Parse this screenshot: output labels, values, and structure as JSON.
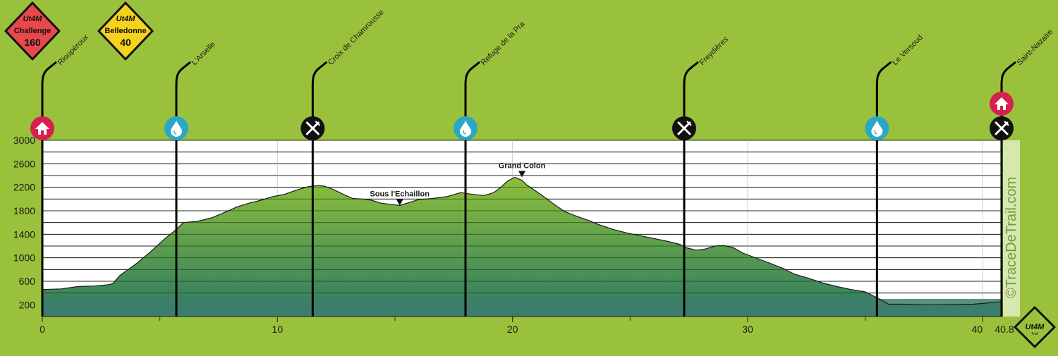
{
  "badges": [
    {
      "brand": "Ut4M",
      "line1": "Challenge",
      "line2": "160",
      "color": "#e8474c"
    },
    {
      "brand": "Ut4M",
      "line1": "Belledonne",
      "line2": "40",
      "color": "#f5d21c"
    }
  ],
  "corner_logo": {
    "brand": "Ut4M",
    "line2": "Trail"
  },
  "watermark": "©TraceDeTrail.com",
  "chart_data": {
    "type": "area",
    "title": "",
    "xlabel": "",
    "ylabel": "",
    "xlim": [
      0,
      40.8
    ],
    "ylim": [
      0,
      3000
    ],
    "x_ticks": [
      0,
      10,
      20,
      30,
      40
    ],
    "x_end_label": "40.8",
    "y_ticks": [
      200,
      600,
      1000,
      1400,
      1800,
      2200,
      2600,
      3000
    ],
    "grid": true,
    "colors": {
      "fill_top": "#8dbf3a",
      "fill_bottom": "#2b7a64",
      "band": "#3e7e6e",
      "line": "#1a1a1a"
    },
    "profile": {
      "x": [
        0,
        0.8,
        1.5,
        2.2,
        2.8,
        3.0,
        3.3,
        4.0,
        4.6,
        5.2,
        5.6,
        5.8,
        6.0,
        6.6,
        7.2,
        7.8,
        8.3,
        8.8,
        9.3,
        9.8,
        10.3,
        10.8,
        11.3,
        11.7,
        12.0,
        12.4,
        12.8,
        13.2,
        13.6,
        14.0,
        14.4,
        14.8,
        15.2,
        15.6,
        16.0,
        16.6,
        17.2,
        17.8,
        18.3,
        18.8,
        19.2,
        19.5,
        19.8,
        20.1,
        20.4,
        20.6,
        20.9,
        21.3,
        21.7,
        22.2,
        22.7,
        23.2,
        23.7,
        24.3,
        24.9,
        25.5,
        26.1,
        26.6,
        27.1,
        27.4,
        27.8,
        28.2,
        28.6,
        29.0,
        29.4,
        29.8,
        30.2,
        30.6,
        31.0,
        31.5,
        32.0,
        32.6,
        33.2,
        33.8,
        34.4,
        35.0,
        35.6,
        36.0,
        36.6,
        37.4,
        38.2,
        39.0,
        39.6,
        40.2,
        40.8
      ],
      "y": [
        460,
        470,
        510,
        520,
        540,
        560,
        700,
        900,
        1100,
        1320,
        1450,
        1520,
        1600,
        1620,
        1680,
        1780,
        1870,
        1930,
        1980,
        2040,
        2080,
        2150,
        2210,
        2230,
        2220,
        2160,
        2080,
        2010,
        2000,
        1980,
        1930,
        1910,
        1890,
        1940,
        1990,
        2010,
        2040,
        2110,
        2080,
        2060,
        2110,
        2200,
        2310,
        2370,
        2320,
        2240,
        2160,
        2050,
        1930,
        1790,
        1710,
        1640,
        1560,
        1480,
        1420,
        1370,
        1320,
        1280,
        1230,
        1170,
        1130,
        1150,
        1200,
        1210,
        1170,
        1080,
        1020,
        960,
        900,
        820,
        720,
        650,
        570,
        510,
        460,
        420,
        300,
        210,
        210,
        200,
        200,
        205,
        210,
        230,
        255
      ]
    },
    "summit_labels": [
      {
        "label": "Sous l'Echaillon",
        "x": 15.2,
        "y": 1890
      },
      {
        "label": "Grand Colon",
        "x": 20.4,
        "y": 2370
      }
    ],
    "waypoints": [
      {
        "name": "Rioupéroux",
        "km": 0,
        "icon": "home-icon"
      },
      {
        "name": "L'Arselle",
        "km": 5.7,
        "icon": "water-drop-icon"
      },
      {
        "name": "Croix de Chamrousse",
        "km": 11.5,
        "icon": "food-icon"
      },
      {
        "name": "Refuge de la Pra",
        "km": 18.0,
        "icon": "water-drop-icon"
      },
      {
        "name": "Freydières",
        "km": 27.3,
        "icon": "food-icon"
      },
      {
        "name": "Le Versoud",
        "km": 35.5,
        "icon": "water-drop-icon"
      },
      {
        "name": "Saint-Nazaire",
        "km": 40.8,
        "icon": "food-icon",
        "extra_icon": "home-icon"
      }
    ],
    "icon_colors": {
      "home-icon": "#d6204f",
      "water-drop-icon": "#2aa7c7",
      "food-icon": "#111111"
    }
  }
}
